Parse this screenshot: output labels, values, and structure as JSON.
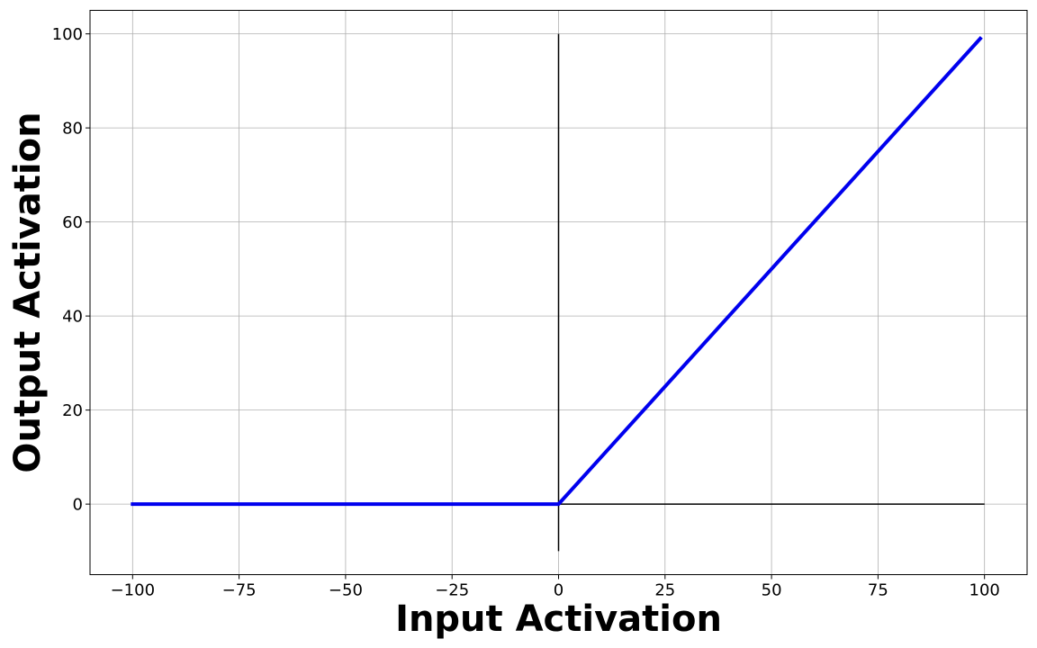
{
  "chart_data": {
    "type": "line",
    "title": "",
    "xlabel": "Input Activation",
    "ylabel": "Output Activation",
    "xlim": [
      -110,
      110
    ],
    "ylim": [
      -15,
      105
    ],
    "grid": true,
    "x_ticks": [
      -100,
      -75,
      -50,
      -25,
      0,
      25,
      50,
      75,
      100
    ],
    "x_tick_labels": [
      "−100",
      "−75",
      "−50",
      "−25",
      "0",
      "25",
      "50",
      "75",
      "100"
    ],
    "y_ticks": [
      0,
      20,
      40,
      60,
      80,
      100
    ],
    "y_tick_labels": [
      "0",
      "20",
      "40",
      "60",
      "80",
      "100"
    ],
    "reference_lines": [
      {
        "orientation": "horizontal",
        "y": 0,
        "x_from": 0,
        "x_to": 100,
        "color": "#000000"
      },
      {
        "orientation": "vertical",
        "x": 0,
        "y_from": -10,
        "y_to": 100,
        "color": "#000000"
      }
    ],
    "series": [
      {
        "color": "#0000ee",
        "x": [
          -100,
          0,
          99
        ],
        "y": [
          0,
          0,
          99
        ]
      }
    ]
  }
}
